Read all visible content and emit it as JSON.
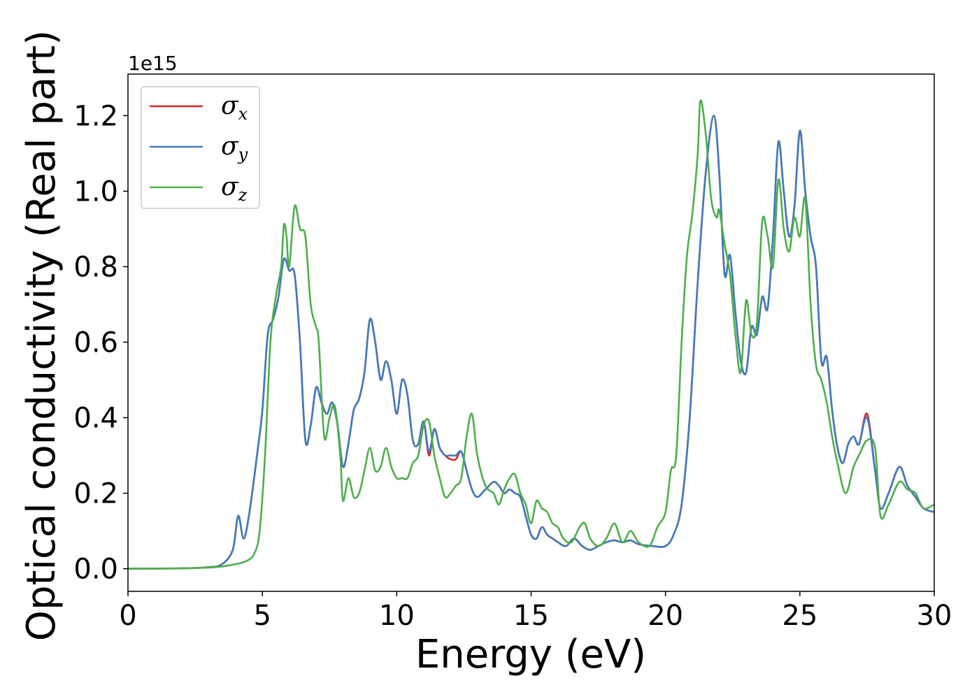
{
  "chart_data": {
    "type": "line",
    "xlabel": "Energy (eV)",
    "ylabel": "Optical conductivity (Real part)",
    "y_offset_label": "1e15",
    "xlim": [
      0,
      30
    ],
    "ylim": [
      -0.06,
      1.31
    ],
    "x_ticks": [
      0,
      5,
      10,
      15,
      20,
      25,
      30
    ],
    "x_tick_labels": [
      "0",
      "5",
      "10",
      "15",
      "20",
      "25",
      "30"
    ],
    "y_ticks": [
      0.0,
      0.2,
      0.4,
      0.6,
      0.8,
      1.0,
      1.2
    ],
    "y_tick_labels": [
      "0.0",
      "0.2",
      "0.4",
      "0.6",
      "0.8",
      "1.0",
      "1.2"
    ],
    "grid": false,
    "legend_position": "top-left",
    "series": [
      {
        "name": "σx",
        "symbol": "σ",
        "subscript": "x",
        "color": "#d62728",
        "x": [
          0,
          2,
          3,
          3.5,
          3.9,
          4.1,
          4.3,
          4.5,
          4.8,
          5.0,
          5.2,
          5.4,
          5.6,
          5.8,
          6.0,
          6.2,
          6.4,
          6.6,
          6.8,
          7.0,
          7.2,
          7.4,
          7.6,
          7.8,
          8.0,
          8.2,
          8.4,
          8.6,
          8.8,
          9.0,
          9.2,
          9.4,
          9.6,
          9.8,
          10.0,
          10.2,
          10.4,
          10.6,
          10.8,
          11.0,
          11.2,
          11.4,
          11.6,
          11.8,
          12.0,
          12.2,
          12.4,
          12.6,
          12.8,
          13.0,
          13.3,
          13.6,
          13.8,
          14.0,
          14.2,
          14.4,
          14.6,
          14.8,
          15.0,
          15.2,
          15.4,
          15.6,
          15.8,
          16.0,
          16.3,
          16.6,
          16.9,
          17.2,
          17.5,
          17.8,
          18.1,
          18.4,
          18.7,
          19.0,
          19.5,
          20.0,
          20.3,
          20.6,
          20.9,
          21.2,
          21.5,
          21.8,
          22.0,
          22.2,
          22.4,
          22.6,
          22.8,
          23.0,
          23.2,
          23.4,
          23.6,
          23.8,
          24.0,
          24.2,
          24.4,
          24.6,
          24.8,
          25.0,
          25.2,
          25.4,
          25.6,
          25.8,
          26.0,
          26.2,
          26.4,
          26.6,
          26.8,
          27.0,
          27.2,
          27.5,
          27.8,
          28.0,
          28.3,
          28.7,
          29.0,
          29.3,
          29.6,
          30.0
        ],
        "values": [
          0,
          0.001,
          0.004,
          0.012,
          0.05,
          0.14,
          0.08,
          0.14,
          0.3,
          0.42,
          0.62,
          0.66,
          0.72,
          0.82,
          0.79,
          0.78,
          0.6,
          0.34,
          0.38,
          0.48,
          0.44,
          0.41,
          0.44,
          0.38,
          0.27,
          0.33,
          0.42,
          0.45,
          0.52,
          0.66,
          0.6,
          0.5,
          0.55,
          0.5,
          0.41,
          0.5,
          0.46,
          0.34,
          0.33,
          0.39,
          0.3,
          0.37,
          0.32,
          0.3,
          0.29,
          0.29,
          0.31,
          0.26,
          0.21,
          0.19,
          0.21,
          0.23,
          0.22,
          0.2,
          0.21,
          0.2,
          0.19,
          0.14,
          0.09,
          0.08,
          0.11,
          0.09,
          0.08,
          0.07,
          0.06,
          0.08,
          0.06,
          0.05,
          0.06,
          0.07,
          0.075,
          0.07,
          0.075,
          0.065,
          0.06,
          0.06,
          0.09,
          0.17,
          0.4,
          0.76,
          1.05,
          1.2,
          1.05,
          0.78,
          0.83,
          0.68,
          0.55,
          0.52,
          0.64,
          0.62,
          0.72,
          0.69,
          0.88,
          1.13,
          1.0,
          0.88,
          0.96,
          1.16,
          1.0,
          0.88,
          0.8,
          0.55,
          0.56,
          0.42,
          0.32,
          0.28,
          0.33,
          0.35,
          0.33,
          0.41,
          0.26,
          0.16,
          0.2,
          0.27,
          0.22,
          0.19,
          0.16,
          0.15
        ]
      },
      {
        "name": "σy",
        "symbol": "σ",
        "subscript": "y",
        "color": "#3f7bbf",
        "x": [
          0,
          2,
          3,
          3.5,
          3.9,
          4.1,
          4.3,
          4.5,
          4.8,
          5.0,
          5.2,
          5.4,
          5.6,
          5.8,
          6.0,
          6.2,
          6.4,
          6.6,
          6.8,
          7.0,
          7.2,
          7.4,
          7.6,
          7.8,
          8.0,
          8.2,
          8.4,
          8.6,
          8.8,
          9.0,
          9.2,
          9.4,
          9.6,
          9.8,
          10.0,
          10.2,
          10.4,
          10.6,
          10.8,
          11.0,
          11.2,
          11.4,
          11.6,
          11.8,
          12.0,
          12.2,
          12.4,
          12.6,
          12.8,
          13.0,
          13.3,
          13.6,
          13.8,
          14.0,
          14.2,
          14.4,
          14.6,
          14.8,
          15.0,
          15.2,
          15.4,
          15.6,
          15.8,
          16.0,
          16.3,
          16.6,
          16.9,
          17.2,
          17.5,
          17.8,
          18.1,
          18.4,
          18.7,
          19.0,
          19.5,
          20.0,
          20.3,
          20.6,
          20.9,
          21.2,
          21.5,
          21.8,
          22.0,
          22.2,
          22.4,
          22.6,
          22.8,
          23.0,
          23.2,
          23.4,
          23.6,
          23.8,
          24.0,
          24.2,
          24.4,
          24.6,
          24.8,
          25.0,
          25.2,
          25.4,
          25.6,
          25.8,
          26.0,
          26.2,
          26.4,
          26.6,
          26.8,
          27.0,
          27.2,
          27.5,
          27.8,
          28.0,
          28.3,
          28.7,
          29.0,
          29.3,
          29.6,
          30.0
        ],
        "values": [
          0,
          0.001,
          0.004,
          0.012,
          0.05,
          0.14,
          0.08,
          0.14,
          0.3,
          0.42,
          0.62,
          0.66,
          0.72,
          0.82,
          0.79,
          0.78,
          0.6,
          0.34,
          0.38,
          0.48,
          0.44,
          0.41,
          0.44,
          0.38,
          0.27,
          0.33,
          0.42,
          0.45,
          0.52,
          0.66,
          0.6,
          0.5,
          0.55,
          0.5,
          0.41,
          0.5,
          0.46,
          0.34,
          0.33,
          0.39,
          0.31,
          0.37,
          0.32,
          0.3,
          0.3,
          0.3,
          0.31,
          0.26,
          0.21,
          0.19,
          0.21,
          0.23,
          0.22,
          0.2,
          0.21,
          0.2,
          0.19,
          0.14,
          0.09,
          0.08,
          0.11,
          0.09,
          0.08,
          0.07,
          0.06,
          0.08,
          0.06,
          0.05,
          0.06,
          0.07,
          0.075,
          0.07,
          0.075,
          0.065,
          0.06,
          0.06,
          0.09,
          0.17,
          0.4,
          0.76,
          1.05,
          1.2,
          1.05,
          0.78,
          0.83,
          0.68,
          0.55,
          0.52,
          0.64,
          0.62,
          0.72,
          0.69,
          0.88,
          1.13,
          1.0,
          0.88,
          0.96,
          1.16,
          1.0,
          0.88,
          0.8,
          0.55,
          0.56,
          0.42,
          0.32,
          0.28,
          0.33,
          0.35,
          0.33,
          0.4,
          0.26,
          0.16,
          0.2,
          0.27,
          0.22,
          0.19,
          0.16,
          0.15
        ]
      },
      {
        "name": "σz",
        "symbol": "σ",
        "subscript": "z",
        "color": "#4daf4a",
        "x": [
          0,
          2,
          3,
          3.5,
          4.0,
          4.4,
          4.7,
          4.9,
          5.1,
          5.3,
          5.5,
          5.7,
          5.8,
          5.9,
          6.0,
          6.2,
          6.4,
          6.6,
          6.8,
          7.0,
          7.1,
          7.3,
          7.5,
          7.7,
          7.9,
          8.0,
          8.2,
          8.4,
          8.6,
          8.8,
          9.0,
          9.2,
          9.4,
          9.6,
          9.8,
          10.0,
          10.2,
          10.4,
          10.6,
          10.8,
          11.0,
          11.2,
          11.4,
          11.6,
          11.8,
          12.0,
          12.2,
          12.4,
          12.6,
          12.8,
          13.0,
          13.3,
          13.6,
          13.8,
          14.0,
          14.2,
          14.4,
          14.6,
          14.8,
          15.0,
          15.2,
          15.4,
          15.6,
          15.8,
          16.0,
          16.2,
          16.5,
          16.8,
          17.0,
          17.2,
          17.5,
          17.8,
          18.1,
          18.4,
          18.7,
          19.0,
          19.4,
          19.7,
          20.0,
          20.2,
          20.4,
          20.6,
          20.8,
          21.0,
          21.2,
          21.3,
          21.5,
          21.7,
          21.9,
          22.0,
          22.2,
          22.4,
          22.6,
          22.8,
          23.0,
          23.2,
          23.4,
          23.6,
          23.8,
          24.0,
          24.2,
          24.4,
          24.6,
          24.8,
          25.0,
          25.2,
          25.4,
          25.6,
          25.8,
          26.0,
          26.2,
          26.4,
          26.7,
          27.0,
          27.2,
          27.5,
          27.8,
          28.0,
          28.3,
          28.7,
          29.0,
          29.3,
          29.6,
          30.0
        ],
        "values": [
          0,
          0.001,
          0.003,
          0.006,
          0.012,
          0.02,
          0.04,
          0.1,
          0.3,
          0.6,
          0.72,
          0.8,
          0.91,
          0.88,
          0.8,
          0.96,
          0.9,
          0.88,
          0.7,
          0.64,
          0.6,
          0.35,
          0.4,
          0.43,
          0.3,
          0.18,
          0.24,
          0.19,
          0.2,
          0.26,
          0.32,
          0.26,
          0.27,
          0.32,
          0.27,
          0.24,
          0.24,
          0.24,
          0.28,
          0.3,
          0.38,
          0.39,
          0.3,
          0.24,
          0.19,
          0.2,
          0.22,
          0.24,
          0.35,
          0.41,
          0.3,
          0.22,
          0.2,
          0.17,
          0.21,
          0.24,
          0.25,
          0.2,
          0.17,
          0.12,
          0.18,
          0.16,
          0.15,
          0.12,
          0.11,
          0.08,
          0.07,
          0.11,
          0.12,
          0.08,
          0.06,
          0.08,
          0.12,
          0.07,
          0.1,
          0.07,
          0.06,
          0.11,
          0.15,
          0.26,
          0.3,
          0.6,
          0.83,
          0.94,
          1.1,
          1.24,
          1.15,
          0.98,
          0.93,
          0.95,
          0.86,
          0.78,
          0.62,
          0.52,
          0.71,
          0.62,
          0.65,
          0.92,
          0.88,
          0.8,
          1.03,
          0.9,
          0.84,
          0.93,
          0.88,
          0.98,
          0.7,
          0.54,
          0.5,
          0.44,
          0.35,
          0.28,
          0.2,
          0.27,
          0.3,
          0.34,
          0.32,
          0.14,
          0.17,
          0.23,
          0.21,
          0.2,
          0.16,
          0.17
        ]
      }
    ]
  }
}
